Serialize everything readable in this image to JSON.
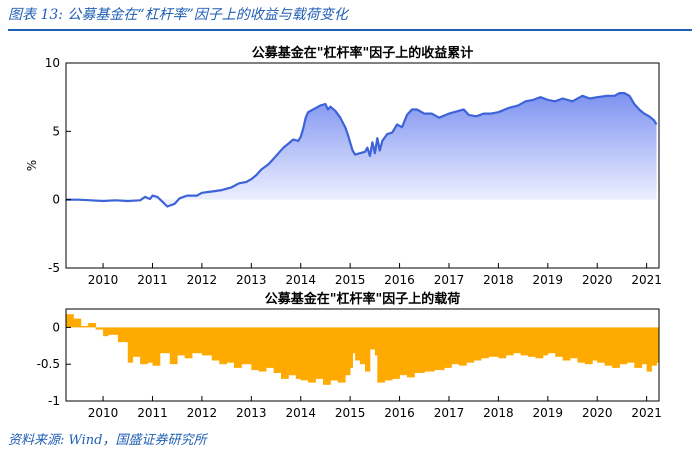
{
  "figure": {
    "caption": "图表 13:  公募基金在“杠杆率”因子上的收益与载荷变化",
    "source": "资料来源:  Wind，国盛证券研究所"
  },
  "colors": {
    "caption_blue": "#1f5fb4",
    "line_blue": "#3d63d8",
    "area_top": "#7d92f0",
    "area_bottom": "#f3f5ff",
    "bar_orange": "#ffaa00"
  },
  "chart_data": [
    {
      "type": "area",
      "title": "公募基金在\"杠杆率\"因子上的收益累计",
      "xlabel": "",
      "ylabel": "%",
      "xlim": [
        2009.25,
        2021.25
      ],
      "ylim": [
        -5,
        10
      ],
      "yticks": [
        -5,
        0,
        5,
        10
      ],
      "xticks": [
        2010,
        2011,
        2012,
        2013,
        2014,
        2015,
        2016,
        2017,
        2018,
        2019,
        2020,
        2021
      ],
      "grid": false,
      "x": [
        2009.25,
        2009.5,
        2009.75,
        2010.0,
        2010.25,
        2010.5,
        2010.75,
        2010.85,
        2010.95,
        2011.0,
        2011.1,
        2011.2,
        2011.3,
        2011.45,
        2011.55,
        2011.7,
        2011.9,
        2012.0,
        2012.2,
        2012.4,
        2012.5,
        2012.6,
        2012.75,
        2012.9,
        2013.0,
        2013.1,
        2013.2,
        2013.35,
        2013.45,
        2013.55,
        2013.65,
        2013.75,
        2013.85,
        2013.95,
        2014.0,
        2014.05,
        2014.1,
        2014.15,
        2014.25,
        2014.4,
        2014.5,
        2014.55,
        2014.6,
        2014.7,
        2014.8,
        2014.9,
        2014.95,
        2015.0,
        2015.05,
        2015.1,
        2015.2,
        2015.3,
        2015.35,
        2015.4,
        2015.45,
        2015.5,
        2015.55,
        2015.6,
        2015.65,
        2015.75,
        2015.85,
        2015.95,
        2016.05,
        2016.15,
        2016.25,
        2016.35,
        2016.5,
        2016.65,
        2016.8,
        2017.0,
        2017.2,
        2017.3,
        2017.4,
        2017.55,
        2017.7,
        2017.85,
        2018.0,
        2018.2,
        2018.4,
        2018.55,
        2018.7,
        2018.85,
        2019.0,
        2019.15,
        2019.3,
        2019.5,
        2019.7,
        2019.85,
        2020.0,
        2020.2,
        2020.35,
        2020.45,
        2020.55,
        2020.65,
        2020.75,
        2020.85,
        2020.95,
        2021.05,
        2021.15,
        2021.2
      ],
      "y": [
        0,
        0,
        -0.05,
        -0.1,
        -0.05,
        -0.1,
        -0.05,
        0.2,
        0.05,
        0.3,
        0.2,
        -0.15,
        -0.5,
        -0.3,
        0.1,
        0.3,
        0.3,
        0.5,
        0.6,
        0.7,
        0.8,
        0.9,
        1.2,
        1.3,
        1.5,
        1.8,
        2.2,
        2.6,
        3.0,
        3.4,
        3.8,
        4.1,
        4.4,
        4.3,
        4.6,
        5.2,
        6.0,
        6.4,
        6.6,
        6.9,
        7.0,
        6.6,
        6.8,
        6.5,
        6.0,
        5.3,
        4.8,
        4.2,
        3.6,
        3.3,
        3.4,
        3.5,
        3.8,
        3.2,
        4.2,
        3.4,
        4.5,
        3.6,
        4.3,
        4.8,
        4.9,
        5.5,
        5.3,
        6.2,
        6.6,
        6.6,
        6.3,
        6.3,
        6.0,
        6.3,
        6.5,
        6.6,
        6.2,
        6.1,
        6.3,
        6.3,
        6.4,
        6.7,
        6.9,
        7.2,
        7.3,
        7.5,
        7.3,
        7.2,
        7.4,
        7.2,
        7.6,
        7.4,
        7.5,
        7.6,
        7.6,
        7.8,
        7.8,
        7.6,
        7.0,
        6.6,
        6.3,
        6.1,
        5.8,
        5.5
      ]
    },
    {
      "type": "bar",
      "title": "公募基金在\"杠杆率\"因子上的载荷",
      "xlabel": "",
      "ylabel": "",
      "xlim": [
        2009.25,
        2021.25
      ],
      "ylim": [
        -1,
        0.25
      ],
      "yticks": [
        -1,
        -0.5,
        0
      ],
      "xticks": [
        2010,
        2011,
        2012,
        2013,
        2014,
        2015,
        2016,
        2017,
        2018,
        2019,
        2020,
        2021
      ],
      "grid": false,
      "x": [
        2009.25,
        2009.4,
        2009.55,
        2009.7,
        2009.85,
        2010.0,
        2010.1,
        2010.3,
        2010.5,
        2010.6,
        2010.75,
        2010.9,
        2011.0,
        2011.15,
        2011.35,
        2011.5,
        2011.65,
        2011.8,
        2012.0,
        2012.2,
        2012.35,
        2012.5,
        2012.65,
        2012.8,
        2013.0,
        2013.15,
        2013.3,
        2013.45,
        2013.6,
        2013.75,
        2013.9,
        2014.0,
        2014.15,
        2014.3,
        2014.45,
        2014.6,
        2014.75,
        2014.9,
        2015.0,
        2015.05,
        2015.1,
        2015.2,
        2015.3,
        2015.4,
        2015.5,
        2015.55,
        2015.7,
        2015.85,
        2016.0,
        2016.15,
        2016.3,
        2016.5,
        2016.7,
        2016.9,
        2017.05,
        2017.2,
        2017.35,
        2017.5,
        2017.65,
        2017.8,
        2018.0,
        2018.15,
        2018.3,
        2018.45,
        2018.6,
        2018.75,
        2018.9,
        2019.0,
        2019.15,
        2019.3,
        2019.45,
        2019.6,
        2019.75,
        2019.9,
        2020.0,
        2020.15,
        2020.3,
        2020.45,
        2020.6,
        2020.75,
        2020.9,
        2021.0,
        2021.1,
        2021.2
      ],
      "values": [
        0.18,
        0.12,
        0.02,
        0.06,
        -0.03,
        -0.12,
        -0.1,
        -0.2,
        -0.48,
        -0.4,
        -0.5,
        -0.48,
        -0.52,
        -0.35,
        -0.5,
        -0.38,
        -0.42,
        -0.35,
        -0.38,
        -0.45,
        -0.5,
        -0.48,
        -0.55,
        -0.5,
        -0.58,
        -0.6,
        -0.55,
        -0.62,
        -0.7,
        -0.65,
        -0.7,
        -0.72,
        -0.75,
        -0.7,
        -0.78,
        -0.72,
        -0.75,
        -0.65,
        -0.55,
        -0.35,
        -0.45,
        -0.5,
        -0.6,
        -0.3,
        -0.38,
        -0.75,
        -0.72,
        -0.7,
        -0.65,
        -0.68,
        -0.62,
        -0.6,
        -0.58,
        -0.55,
        -0.5,
        -0.52,
        -0.48,
        -0.45,
        -0.42,
        -0.4,
        -0.42,
        -0.38,
        -0.35,
        -0.38,
        -0.4,
        -0.42,
        -0.38,
        -0.35,
        -0.4,
        -0.45,
        -0.42,
        -0.48,
        -0.5,
        -0.45,
        -0.48,
        -0.52,
        -0.55,
        -0.5,
        -0.48,
        -0.55,
        -0.5,
        -0.6,
        -0.52,
        -0.48
      ]
    }
  ]
}
